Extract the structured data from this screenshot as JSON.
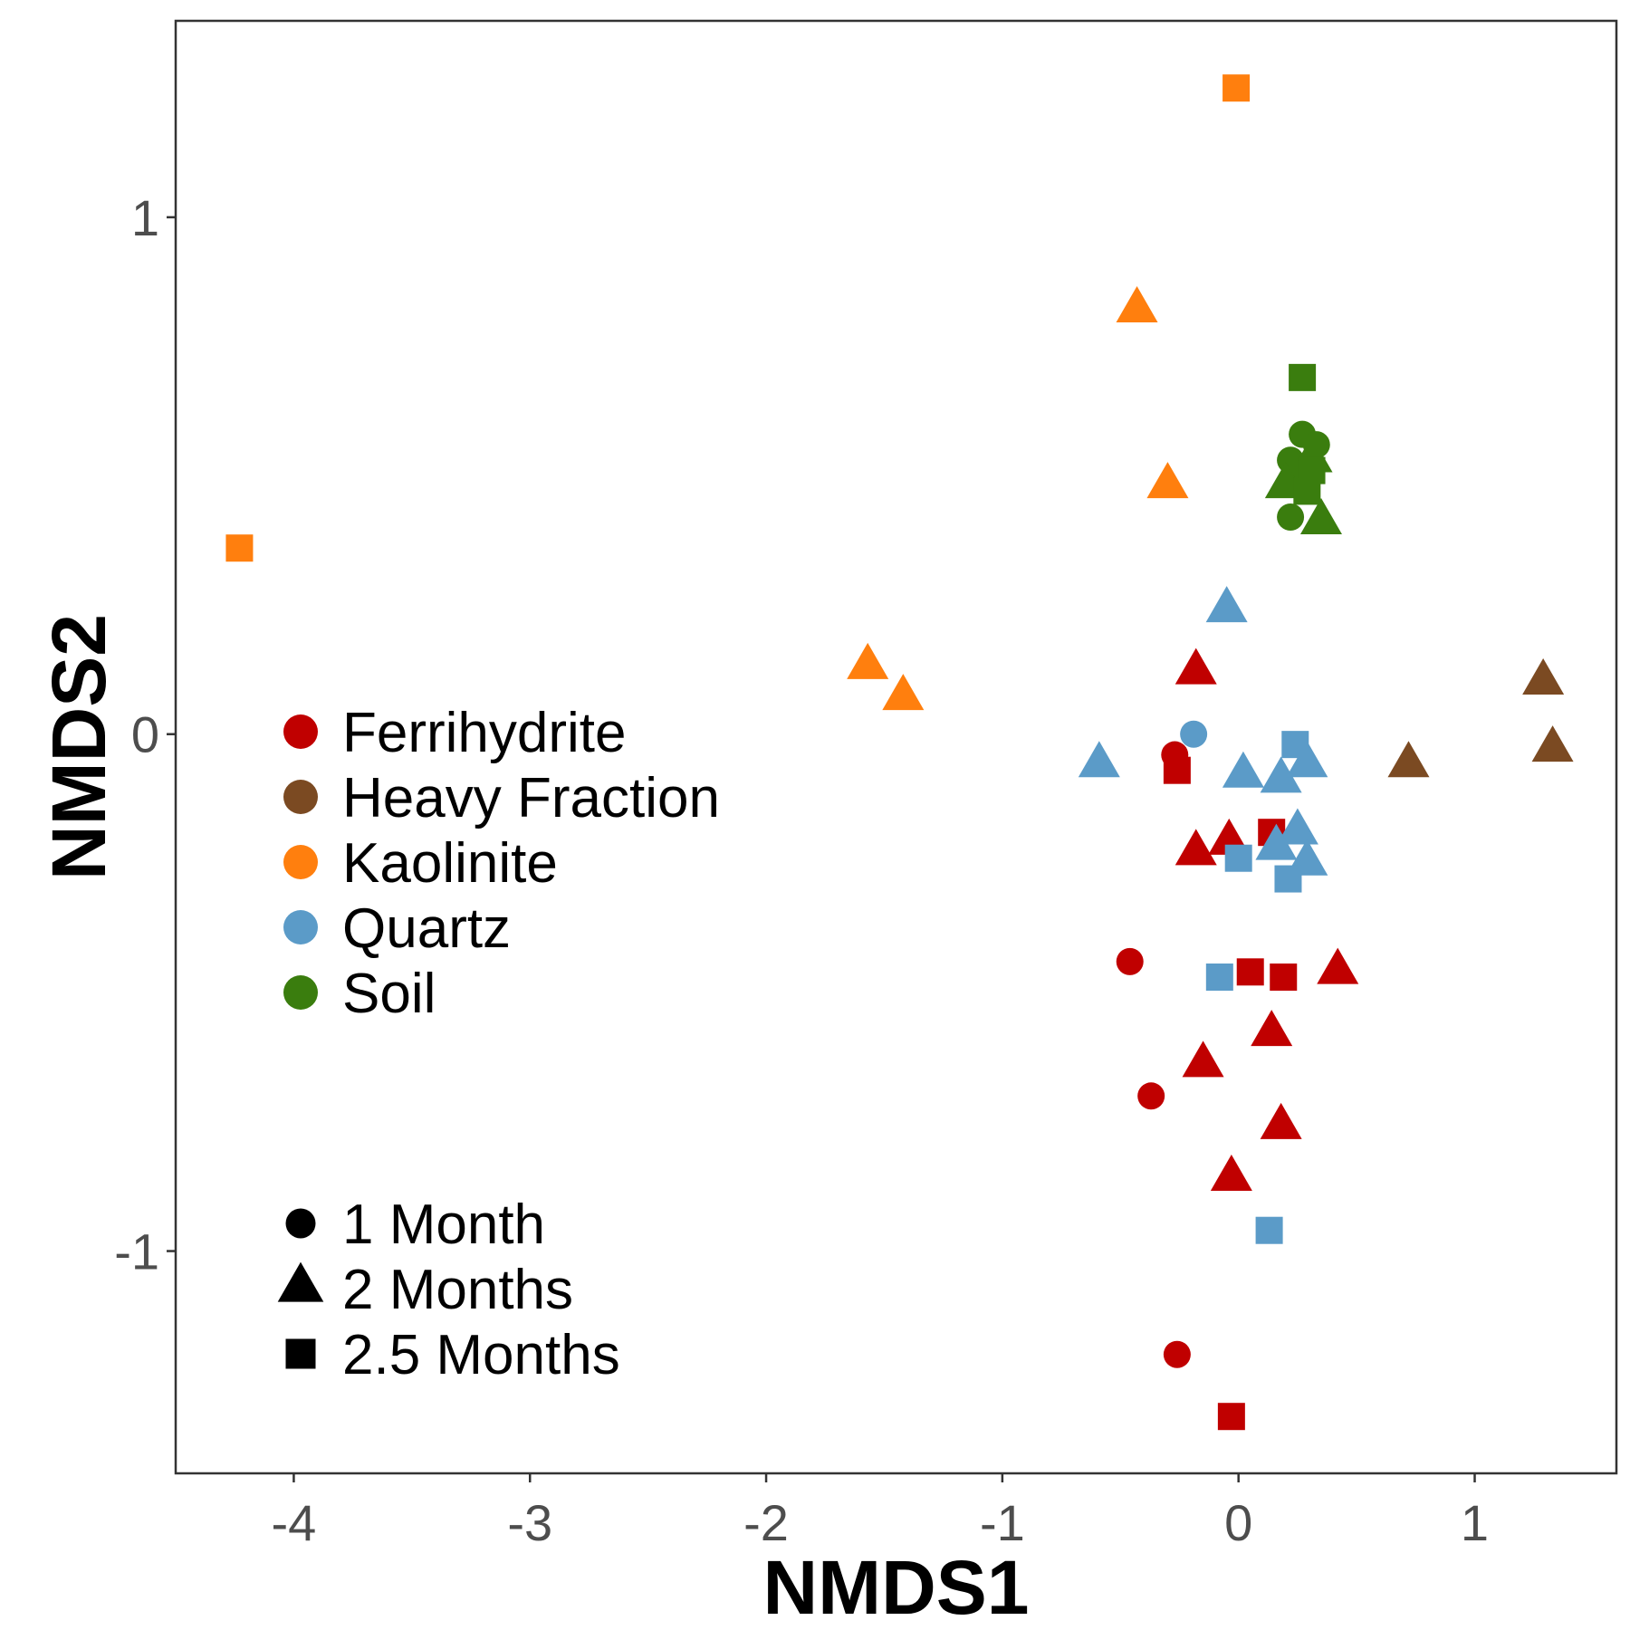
{
  "chart_data": {
    "type": "scatter",
    "xlabel": "NMDS1",
    "ylabel": "NMDS2",
    "xlim": [
      -4.5,
      1.6
    ],
    "ylim": [
      -1.43,
      1.38
    ],
    "xticks": [
      -4,
      -3,
      -2,
      -1,
      0,
      1
    ],
    "yticks": [
      -1,
      0,
      1
    ],
    "grid": false,
    "legend_groups": [
      {
        "kind": "color",
        "items": [
          {
            "label": "Ferrihydrite",
            "color": "#c00000"
          },
          {
            "label": "Heavy Fraction",
            "color": "#7b4a22"
          },
          {
            "label": "Kaolinite",
            "color": "#ff7f0e"
          },
          {
            "label": "Quartz",
            "color": "#5b9bc8"
          },
          {
            "label": "Soil",
            "color": "#3a7d0e"
          }
        ]
      },
      {
        "kind": "shape",
        "items": [
          {
            "label": "1 Month",
            "shape": "circle"
          },
          {
            "label": "2 Months",
            "shape": "triangle"
          },
          {
            "label": "2.5 Months",
            "shape": "square"
          }
        ]
      }
    ],
    "series": [
      {
        "name": "Ferrihydrite",
        "color": "#c00000",
        "points": [
          {
            "x": -0.27,
            "y": -0.04,
            "shape": "circle"
          },
          {
            "x": -0.46,
            "y": -0.44,
            "shape": "circle"
          },
          {
            "x": -0.37,
            "y": -0.7,
            "shape": "circle"
          },
          {
            "x": -0.26,
            "y": -1.2,
            "shape": "circle"
          },
          {
            "x": -0.18,
            "y": 0.12,
            "shape": "triangle"
          },
          {
            "x": -0.04,
            "y": -0.21,
            "shape": "triangle"
          },
          {
            "x": -0.18,
            "y": -0.23,
            "shape": "triangle"
          },
          {
            "x": 0.42,
            "y": -0.46,
            "shape": "triangle"
          },
          {
            "x": 0.14,
            "y": -0.58,
            "shape": "triangle"
          },
          {
            "x": -0.15,
            "y": -0.64,
            "shape": "triangle"
          },
          {
            "x": 0.18,
            "y": -0.76,
            "shape": "triangle"
          },
          {
            "x": -0.03,
            "y": -0.86,
            "shape": "triangle"
          },
          {
            "x": -0.26,
            "y": -0.07,
            "shape": "square"
          },
          {
            "x": 0.14,
            "y": -0.19,
            "shape": "square"
          },
          {
            "x": 0.05,
            "y": -0.46,
            "shape": "square"
          },
          {
            "x": 0.19,
            "y": -0.47,
            "shape": "square"
          },
          {
            "x": -0.03,
            "y": -1.32,
            "shape": "square"
          }
        ]
      },
      {
        "name": "Heavy Fraction",
        "color": "#7b4a22",
        "points": [
          {
            "x": 1.29,
            "y": 0.1,
            "shape": "triangle"
          },
          {
            "x": 1.33,
            "y": -0.03,
            "shape": "triangle"
          },
          {
            "x": 0.72,
            "y": -0.06,
            "shape": "triangle"
          }
        ]
      },
      {
        "name": "Kaolinite",
        "color": "#ff7f0e",
        "points": [
          {
            "x": -0.43,
            "y": 0.82,
            "shape": "triangle"
          },
          {
            "x": -0.3,
            "y": 0.48,
            "shape": "triangle"
          },
          {
            "x": -1.57,
            "y": 0.13,
            "shape": "triangle"
          },
          {
            "x": -1.42,
            "y": 0.07,
            "shape": "triangle"
          },
          {
            "x": -0.01,
            "y": 1.25,
            "shape": "square"
          },
          {
            "x": -4.23,
            "y": 0.36,
            "shape": "square"
          }
        ]
      },
      {
        "name": "Quartz",
        "color": "#5b9bc8",
        "points": [
          {
            "x": -0.19,
            "y": 0.0,
            "shape": "circle"
          },
          {
            "x": -0.05,
            "y": 0.24,
            "shape": "triangle"
          },
          {
            "x": -0.59,
            "y": -0.06,
            "shape": "triangle"
          },
          {
            "x": 0.02,
            "y": -0.08,
            "shape": "triangle"
          },
          {
            "x": 0.18,
            "y": -0.09,
            "shape": "triangle"
          },
          {
            "x": 0.29,
            "y": -0.06,
            "shape": "triangle"
          },
          {
            "x": 0.25,
            "y": -0.19,
            "shape": "triangle"
          },
          {
            "x": 0.16,
            "y": -0.22,
            "shape": "triangle"
          },
          {
            "x": 0.29,
            "y": -0.25,
            "shape": "triangle"
          },
          {
            "x": 0.24,
            "y": -0.02,
            "shape": "square"
          },
          {
            "x": 0.0,
            "y": -0.24,
            "shape": "square"
          },
          {
            "x": 0.21,
            "y": -0.28,
            "shape": "square"
          },
          {
            "x": -0.08,
            "y": -0.47,
            "shape": "square"
          },
          {
            "x": 0.13,
            "y": -0.96,
            "shape": "square"
          }
        ]
      },
      {
        "name": "Soil",
        "color": "#3a7d0e",
        "points": [
          {
            "x": 0.27,
            "y": 0.58,
            "shape": "circle"
          },
          {
            "x": 0.33,
            "y": 0.56,
            "shape": "circle"
          },
          {
            "x": 0.22,
            "y": 0.53,
            "shape": "circle"
          },
          {
            "x": 0.28,
            "y": 0.5,
            "shape": "circle"
          },
          {
            "x": 0.22,
            "y": 0.42,
            "shape": "circle"
          },
          {
            "x": 0.31,
            "y": 0.53,
            "shape": "triangle"
          },
          {
            "x": 0.2,
            "y": 0.48,
            "shape": "triangle"
          },
          {
            "x": 0.35,
            "y": 0.41,
            "shape": "triangle"
          },
          {
            "x": 0.27,
            "y": 0.69,
            "shape": "square"
          },
          {
            "x": 0.31,
            "y": 0.51,
            "shape": "square"
          },
          {
            "x": 0.29,
            "y": 0.47,
            "shape": "square"
          }
        ]
      }
    ]
  }
}
